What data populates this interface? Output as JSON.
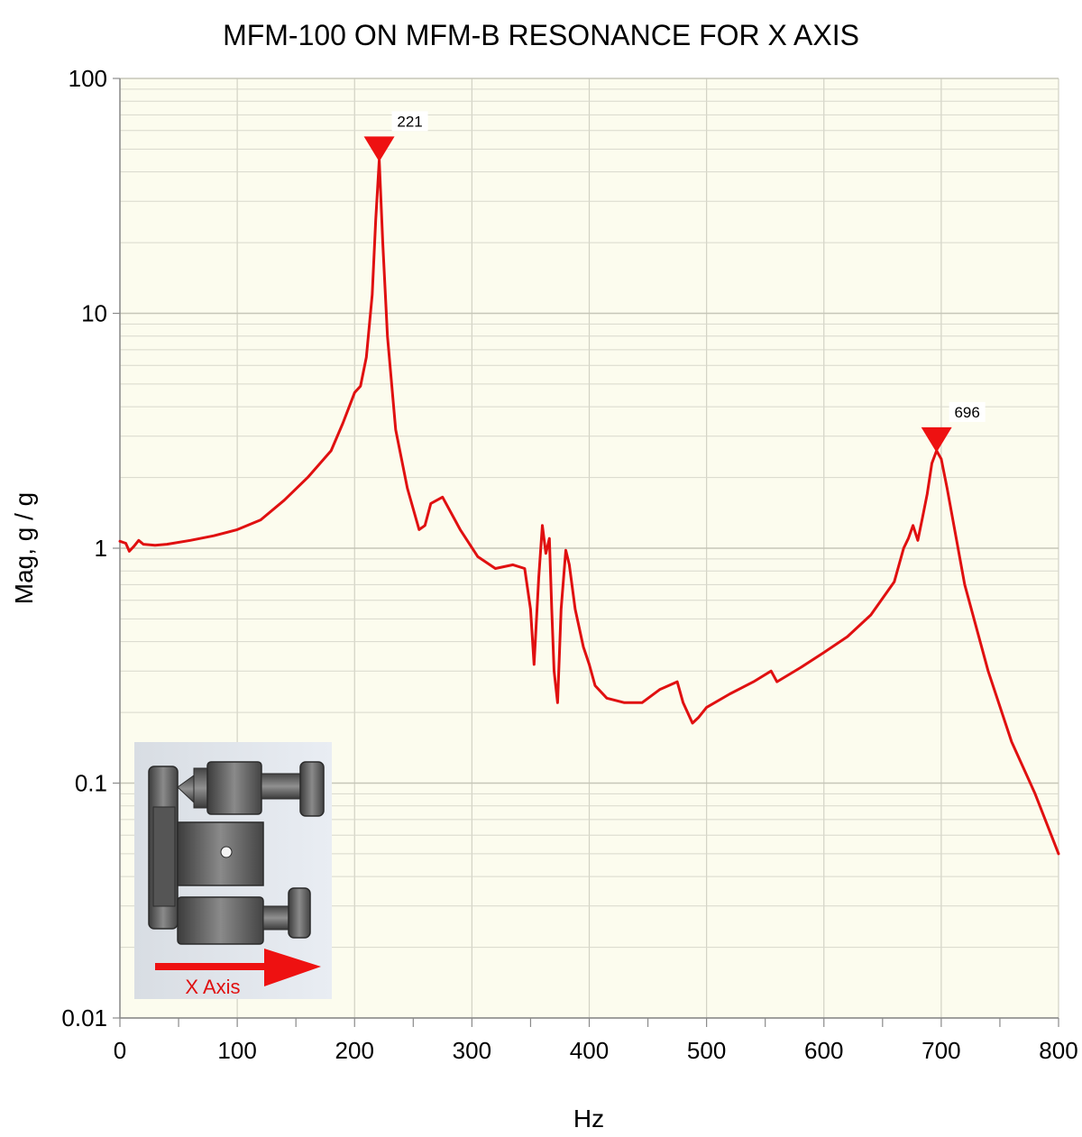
{
  "chart_data": {
    "type": "line",
    "title": "MFM-100 ON MFM-B RESONANCE FOR X AXIS",
    "xlabel": "Hz",
    "ylabel": "Mag, g / g",
    "xlim": [
      0,
      800
    ],
    "ylim": [
      0.01,
      100
    ],
    "yscale": "log",
    "grid": true,
    "legend": "none",
    "x_ticks": [
      "0",
      "100",
      "200",
      "300",
      "400",
      "500",
      "600",
      "700",
      "800"
    ],
    "y_ticks": [
      "100",
      "10",
      "1",
      "0.1",
      "0.01"
    ],
    "series": [
      {
        "color": "#e01010",
        "x": [
          0,
          5,
          8,
          12,
          16,
          20,
          30,
          40,
          60,
          80,
          100,
          120,
          140,
          160,
          180,
          190,
          200,
          205,
          210,
          215,
          218,
          221,
          224,
          228,
          235,
          245,
          255,
          260,
          265,
          275,
          290,
          305,
          320,
          335,
          345,
          350,
          353,
          357,
          360,
          363,
          366,
          368,
          370,
          373,
          376,
          380,
          383,
          388,
          395,
          400,
          405,
          415,
          430,
          445,
          460,
          475,
          480,
          488,
          493,
          500,
          520,
          540,
          555,
          560,
          580,
          600,
          620,
          640,
          660,
          668,
          672,
          676,
          680,
          684,
          688,
          692,
          696,
          700,
          705,
          720,
          740,
          760,
          780,
          800
        ],
        "values": [
          1.07,
          1.05,
          0.97,
          1.02,
          1.08,
          1.04,
          1.03,
          1.04,
          1.08,
          1.13,
          1.2,
          1.32,
          1.6,
          2.0,
          2.6,
          3.4,
          4.6,
          4.9,
          6.5,
          12,
          25,
          45,
          20,
          8,
          3.2,
          1.8,
          1.2,
          1.25,
          1.55,
          1.65,
          1.2,
          0.92,
          0.82,
          0.85,
          0.82,
          0.55,
          0.32,
          0.75,
          1.25,
          0.95,
          1.1,
          0.55,
          0.3,
          0.22,
          0.55,
          0.98,
          0.85,
          0.55,
          0.38,
          0.32,
          0.26,
          0.23,
          0.22,
          0.22,
          0.25,
          0.27,
          0.22,
          0.18,
          0.19,
          0.21,
          0.24,
          0.27,
          0.3,
          0.27,
          0.31,
          0.36,
          0.42,
          0.52,
          0.72,
          1.0,
          1.1,
          1.25,
          1.08,
          1.35,
          1.7,
          2.3,
          2.6,
          2.4,
          1.8,
          0.7,
          0.3,
          0.15,
          0.09,
          0.05
        ]
      }
    ],
    "annotations": [
      {
        "x": 221,
        "y": 45,
        "label": "221",
        "marker": "triangle-down"
      },
      {
        "x": 696,
        "y": 2.6,
        "label": "696",
        "marker": "triangle-down"
      }
    ],
    "inset": {
      "caption": "X Axis",
      "icon": "mfm-mount-assembly-image"
    }
  }
}
